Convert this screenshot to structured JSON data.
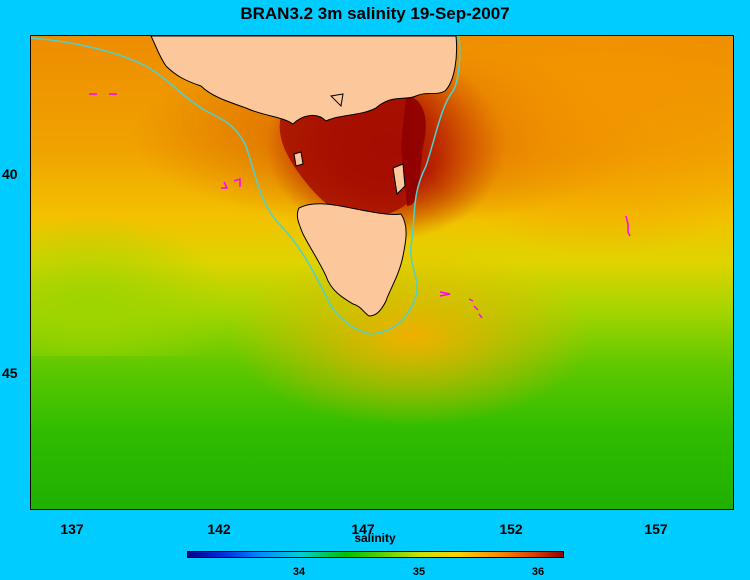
{
  "title": "BRAN3.2 3m salinity 19-Sep-2007",
  "map": {
    "x_ticks": [
      "137",
      "142",
      "147",
      "152",
      "157"
    ],
    "y_ticks": [
      "40",
      "45"
    ],
    "colors": {
      "land": "#fcc89b",
      "background": "#00ccff",
      "coast_contour": "#4fd0d0",
      "markers": "#ff00ff"
    }
  },
  "colorbar": {
    "title": "salinity",
    "ticks": [
      "34",
      "35",
      "36"
    ]
  }
}
